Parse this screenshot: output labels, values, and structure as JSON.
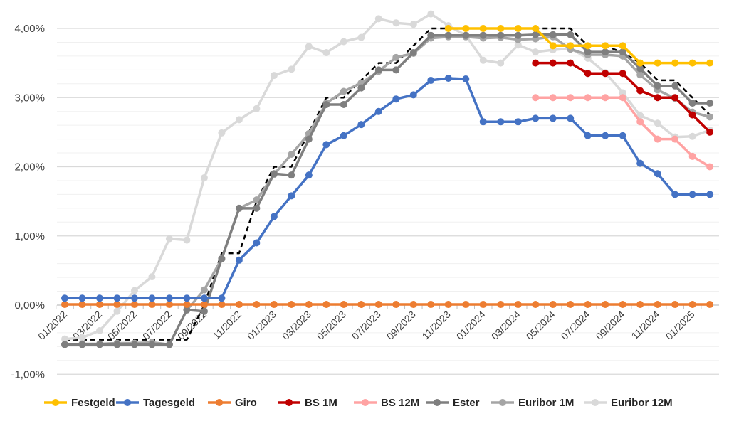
{
  "chart_data": {
    "type": "line",
    "title": "",
    "xlabel": "",
    "ylabel": "",
    "ylim": [
      -1.0,
      4.0
    ],
    "yticks": [
      "-1,00%",
      "0,00%",
      "1,00%",
      "2,00%",
      "3,00%",
      "4,00%"
    ],
    "ytick_values": [
      -1,
      0,
      1,
      2,
      3,
      4
    ],
    "grid": "horizontal major and minor",
    "legend_position": "bottom",
    "x": [
      "01/2022",
      "02/2022",
      "03/2022",
      "04/2022",
      "05/2022",
      "06/2022",
      "07/2022",
      "08/2022",
      "09/2022",
      "10/2022",
      "11/2022",
      "12/2022",
      "01/2023",
      "02/2023",
      "03/2023",
      "04/2023",
      "05/2023",
      "06/2023",
      "07/2023",
      "08/2023",
      "09/2023",
      "10/2023",
      "11/2023",
      "12/2023",
      "01/2024",
      "02/2024",
      "03/2024",
      "04/2024",
      "05/2024",
      "06/2024",
      "07/2024",
      "08/2024",
      "09/2024",
      "10/2024",
      "11/2024",
      "12/2024",
      "01/2025",
      "02/2025"
    ],
    "xtick_labels": [
      "01/2022",
      "03/2022",
      "05/2022",
      "07/2022",
      "09/2022",
      "11/2022",
      "01/2023",
      "03/2023",
      "05/2023",
      "07/2023",
      "09/2023",
      "11/2023",
      "01/2024",
      "03/2024",
      "05/2024",
      "07/2024",
      "09/2024",
      "11/2024",
      "01/2025"
    ],
    "series": [
      {
        "name": "Festgeld",
        "color": "#FFC000",
        "style": "solid",
        "markers": true,
        "values": [
          null,
          null,
          null,
          null,
          null,
          null,
          null,
          null,
          null,
          null,
          null,
          null,
          null,
          null,
          null,
          null,
          null,
          null,
          null,
          null,
          null,
          null,
          4.0,
          4.0,
          4.0,
          4.0,
          4.0,
          4.0,
          3.75,
          3.75,
          3.75,
          3.75,
          3.75,
          3.5,
          3.5,
          3.5,
          3.5,
          3.5
        ]
      },
      {
        "name": "Tagesgeld",
        "color": "#4472C4",
        "style": "solid",
        "markers": true,
        "values": [
          0.1,
          0.1,
          0.1,
          0.1,
          0.1,
          0.1,
          0.1,
          0.1,
          0.1,
          0.1,
          0.65,
          0.9,
          1.28,
          1.58,
          1.88,
          2.32,
          2.45,
          2.61,
          2.8,
          2.98,
          3.04,
          3.25,
          3.28,
          3.27,
          2.65,
          2.65,
          2.65,
          2.7,
          2.7,
          2.7,
          2.45,
          2.45,
          2.45,
          2.05,
          1.9,
          1.6,
          1.6,
          1.6
        ]
      },
      {
        "name": "Giro",
        "color": "#ED7D31",
        "style": "solid",
        "markers": true,
        "values": [
          0.01,
          0.01,
          0.01,
          0.01,
          0.01,
          0.01,
          0.01,
          0.01,
          0.01,
          0.01,
          0.01,
          0.01,
          0.01,
          0.01,
          0.01,
          0.01,
          0.01,
          0.01,
          0.01,
          0.01,
          0.01,
          0.01,
          0.01,
          0.01,
          0.01,
          0.01,
          0.01,
          0.01,
          0.01,
          0.01,
          0.01,
          0.01,
          0.01,
          0.01,
          0.01,
          0.01,
          0.01,
          0.01
        ]
      },
      {
        "name": "BS 1M",
        "color": "#C00000",
        "style": "solid",
        "markers": true,
        "values": [
          null,
          null,
          null,
          null,
          null,
          null,
          null,
          null,
          null,
          null,
          null,
          null,
          null,
          null,
          null,
          null,
          null,
          null,
          null,
          null,
          null,
          null,
          null,
          null,
          null,
          null,
          null,
          3.5,
          3.5,
          3.5,
          3.35,
          3.35,
          3.35,
          3.1,
          3.0,
          3.0,
          2.75,
          2.5
        ]
      },
      {
        "name": "BS 12M",
        "color": "#FFA3A3",
        "style": "solid",
        "markers": true,
        "values": [
          null,
          null,
          null,
          null,
          null,
          null,
          null,
          null,
          null,
          null,
          null,
          null,
          null,
          null,
          null,
          null,
          null,
          null,
          null,
          null,
          null,
          null,
          null,
          null,
          null,
          null,
          null,
          3.0,
          3.0,
          3.0,
          3.0,
          3.0,
          3.0,
          2.65,
          2.4,
          2.4,
          2.15,
          2.0
        ]
      },
      {
        "name": "Ester",
        "color": "#7F7F7F",
        "style": "solid",
        "markers": true,
        "values": [
          -0.57,
          -0.57,
          -0.57,
          -0.57,
          -0.57,
          -0.57,
          -0.57,
          -0.07,
          -0.09,
          0.67,
          1.4,
          1.4,
          1.9,
          1.88,
          2.4,
          2.9,
          2.9,
          3.14,
          3.4,
          3.4,
          3.65,
          3.9,
          3.9,
          3.9,
          3.9,
          3.9,
          3.9,
          3.91,
          3.91,
          3.91,
          3.66,
          3.66,
          3.66,
          3.42,
          3.17,
          3.17,
          2.92,
          2.92
        ]
      },
      {
        "name": "Euribor 1M",
        "color": "#A5A5A5",
        "style": "solid",
        "markers": true,
        "values": [
          -0.57,
          -0.56,
          -0.56,
          -0.55,
          -0.55,
          -0.54,
          -0.57,
          -0.07,
          0.22,
          0.67,
          1.4,
          1.52,
          1.89,
          2.18,
          2.48,
          2.92,
          3.09,
          3.21,
          3.38,
          3.58,
          3.64,
          3.86,
          3.88,
          3.88,
          3.86,
          3.87,
          3.84,
          3.85,
          3.88,
          3.7,
          3.62,
          3.62,
          3.6,
          3.33,
          3.11,
          2.99,
          2.79,
          2.72
        ]
      },
      {
        "name": "Euribor 12M",
        "color": "#D9D9D9",
        "style": "solid",
        "markers": true,
        "values": [
          -0.49,
          -0.47,
          -0.37,
          -0.09,
          0.21,
          0.41,
          0.96,
          0.94,
          1.84,
          2.49,
          2.68,
          2.84,
          3.32,
          3.41,
          3.74,
          3.65,
          3.81,
          3.87,
          4.14,
          4.08,
          4.06,
          4.21,
          4.04,
          3.9,
          3.54,
          3.5,
          3.76,
          3.66,
          3.69,
          3.71,
          3.57,
          3.36,
          3.07,
          2.74,
          2.63,
          2.43,
          2.44,
          2.53
        ]
      },
      {
        "name": "",
        "color": "#000000",
        "style": "dashed",
        "markers": false,
        "in_legend": false,
        "values": [
          -0.5,
          -0.5,
          -0.5,
          -0.5,
          -0.5,
          -0.5,
          -0.5,
          -0.5,
          0.0,
          0.75,
          0.75,
          1.5,
          2.0,
          2.0,
          2.5,
          3.0,
          3.0,
          3.25,
          3.5,
          3.5,
          3.75,
          4.0,
          4.0,
          4.0,
          4.0,
          4.0,
          4.0,
          4.0,
          4.0,
          4.0,
          3.75,
          3.75,
          3.65,
          3.5,
          3.25,
          3.25,
          3.0,
          2.75
        ]
      }
    ]
  }
}
